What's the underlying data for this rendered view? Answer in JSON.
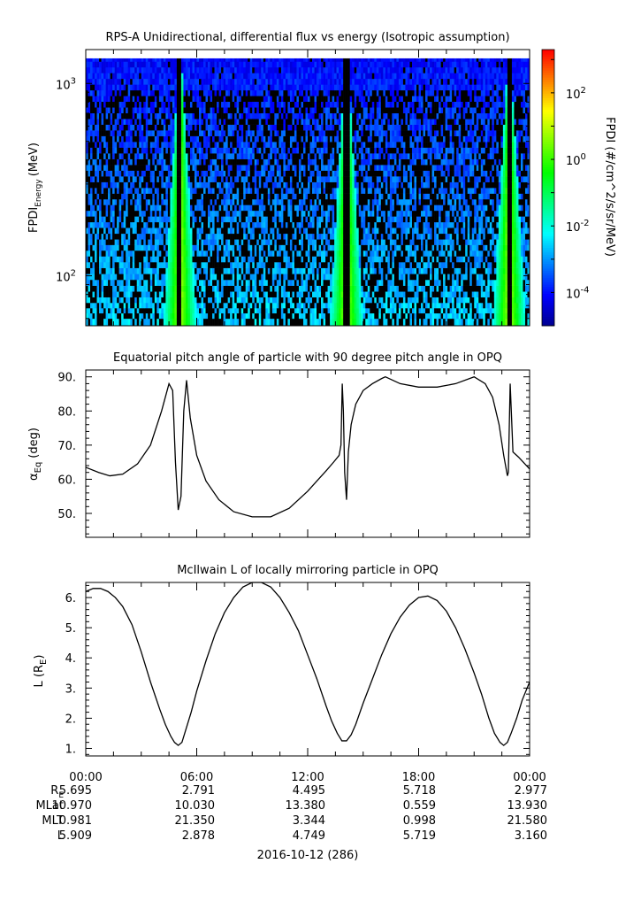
{
  "colors": {
    "axis": "#000000",
    "background": "#ffffff",
    "no_data": "#000000"
  },
  "chart_data": [
    {
      "type": "heatmap",
      "title": "RPS-A Unidirectional, differential flux vs energy (Isotropic assumption)",
      "ylabel_main": "FPDI",
      "ylabel_sub": "Energy",
      "ylabel_unit": "(MeV)",
      "ylim": [
        55,
        1500
      ],
      "yscale": "log",
      "ytick_values": [
        100,
        1000
      ],
      "ytick_labels": [
        {
          "base": "10",
          "exp": "2"
        },
        {
          "base": "10",
          "exp": "3"
        }
      ],
      "x_hours": [
        0,
        24
      ],
      "colorbar": {
        "label": "FPDI (#/cm^2/s/sr/MeV)",
        "log_range": [
          -5,
          3.3
        ],
        "tick_values": [
          -4,
          -2,
          0,
          2
        ],
        "tick_labels": [
          {
            "base": "10",
            "exp": "-4"
          },
          {
            "base": "10",
            "exp": "-2"
          },
          {
            "base": "10",
            "exp": "0"
          },
          {
            "base": "10",
            "exp": "2"
          }
        ],
        "colormap": [
          "#00008f",
          "#0000ff",
          "#0080ff",
          "#00ffff",
          "#00ff80",
          "#00ff00",
          "#80ff00",
          "#ffff00",
          "#ff8000",
          "#ff0000"
        ]
      },
      "peak_times_hours": [
        5.1,
        14.1,
        22.9
      ],
      "low_channels_mev": [
        58,
        62,
        66,
        70,
        75,
        80,
        86,
        92,
        99,
        106,
        114,
        122,
        131,
        140,
        150,
        160,
        172,
        184,
        197,
        211,
        226
      ],
      "high_channels_mev": [
        242,
        259,
        277,
        297,
        318,
        341,
        365,
        391,
        419,
        449,
        481,
        515,
        552,
        591,
        633,
        678,
        726,
        778,
        833,
        892,
        955,
        1023,
        1096,
        1174,
        1257,
        1346
      ]
    },
    {
      "type": "line",
      "title": "Equatorial pitch angle of particle with 90 degree pitch angle in OPQ",
      "ylabel": "α",
      "ylabel_sub": "Eq",
      "ylabel_unit": "(deg)",
      "ylim": [
        43,
        92
      ],
      "ytick_values": [
        50,
        60,
        70,
        80,
        90
      ],
      "ytick_labels": [
        "50.",
        "60.",
        "70.",
        "80.",
        "90."
      ],
      "x_hours": [
        0,
        0.7,
        1.3,
        2.0,
        2.8,
        3.5,
        4.1,
        4.5,
        4.7,
        4.85,
        5.0,
        5.15,
        5.3,
        5.45,
        5.65,
        6.0,
        6.5,
        7.2,
        8.0,
        9.0,
        10.0,
        11.0,
        12.0,
        12.5,
        13.0,
        13.4,
        13.7,
        13.8,
        13.87,
        13.93,
        14.0,
        14.1,
        14.2,
        14.35,
        14.6,
        15.0,
        15.5,
        16.0,
        16.2,
        17.0,
        18.0,
        19.0,
        20.0,
        21.0,
        21.6,
        22.0,
        22.35,
        22.6,
        22.8,
        22.85,
        22.95,
        23.1,
        23.4,
        24.0
      ],
      "values": [
        63.5,
        62.0,
        61.0,
        61.5,
        64.5,
        70.0,
        80.0,
        88.0,
        86.0,
        65.0,
        51.0,
        55.0,
        80.0,
        89.0,
        78.0,
        67.0,
        59.5,
        54.0,
        50.5,
        49.0,
        49.0,
        51.5,
        56.5,
        59.5,
        62.5,
        65.0,
        67.0,
        70.0,
        88.0,
        80.0,
        62.0,
        54.0,
        68.0,
        76.0,
        82.0,
        86.0,
        88.0,
        89.5,
        90.0,
        88.0,
        87.0,
        87.0,
        88.0,
        90.0,
        88.0,
        84.0,
        76.0,
        67.0,
        61.0,
        62.0,
        88.0,
        68.0,
        66.5,
        63.0
      ]
    },
    {
      "type": "line",
      "title": "McIlwain L of locally mirroring particle in OPQ",
      "ylabel": "L (R",
      "ylabel_sub": "E",
      "ylabel_unit": ")",
      "ylim": [
        0.75,
        6.5
      ],
      "ytick_values": [
        1,
        2,
        3,
        4,
        5,
        6
      ],
      "ytick_labels": [
        "1.",
        "2.",
        "3.",
        "4.",
        "5.",
        "6."
      ],
      "x_hours": [
        0,
        0.4,
        0.8,
        1.2,
        1.6,
        2.0,
        2.5,
        3.0,
        3.5,
        4.0,
        4.3,
        4.6,
        4.8,
        5.0,
        5.2,
        5.4,
        5.7,
        6.0,
        6.5,
        7.0,
        7.5,
        8.0,
        8.5,
        9.0,
        9.5,
        10.0,
        10.5,
        11.0,
        11.5,
        12.0,
        12.5,
        13.0,
        13.3,
        13.6,
        13.85,
        14.1,
        14.35,
        14.6,
        15.0,
        15.5,
        16.0,
        16.5,
        17.0,
        17.5,
        18.0,
        18.5,
        19.0,
        19.5,
        20.0,
        20.5,
        21.0,
        21.4,
        21.8,
        22.1,
        22.4,
        22.6,
        22.8,
        23.0,
        23.3,
        23.6,
        24.0
      ],
      "values": [
        6.2,
        6.3,
        6.3,
        6.2,
        6.0,
        5.7,
        5.1,
        4.2,
        3.2,
        2.3,
        1.8,
        1.4,
        1.2,
        1.1,
        1.2,
        1.6,
        2.2,
        2.9,
        3.9,
        4.8,
        5.5,
        6.0,
        6.35,
        6.5,
        6.5,
        6.35,
        6.0,
        5.5,
        4.9,
        4.1,
        3.3,
        2.4,
        1.9,
        1.5,
        1.25,
        1.25,
        1.45,
        1.8,
        2.5,
        3.3,
        4.1,
        4.8,
        5.35,
        5.75,
        6.0,
        6.05,
        5.9,
        5.55,
        5.0,
        4.3,
        3.5,
        2.8,
        2.0,
        1.5,
        1.2,
        1.1,
        1.2,
        1.5,
        2.0,
        2.6,
        3.2
      ]
    }
  ],
  "time_axis": {
    "tick_labels": [
      "00:00",
      "06:00",
      "12:00",
      "18:00",
      "00:00"
    ],
    "tick_hours": [
      0,
      6,
      12,
      18,
      24
    ],
    "minor_every_hours": 1.5
  },
  "ephemeris": {
    "rows": [
      {
        "label": "R",
        "sub": "E",
        "values": [
          "5.695",
          "2.791",
          "4.495",
          "5.718",
          "2.977"
        ]
      },
      {
        "label": "MLat",
        "sub": "",
        "values": [
          "10.970",
          "10.030",
          "13.380",
          "0.559",
          "13.930"
        ]
      },
      {
        "label": "MLT",
        "sub": "",
        "values": [
          "0.981",
          "21.350",
          "3.344",
          "0.998",
          "21.580"
        ]
      },
      {
        "label": "L",
        "sub": "",
        "values": [
          "5.909",
          "2.878",
          "4.749",
          "5.719",
          "3.160"
        ]
      }
    ]
  },
  "date_label": "2016-10-12 (286)"
}
